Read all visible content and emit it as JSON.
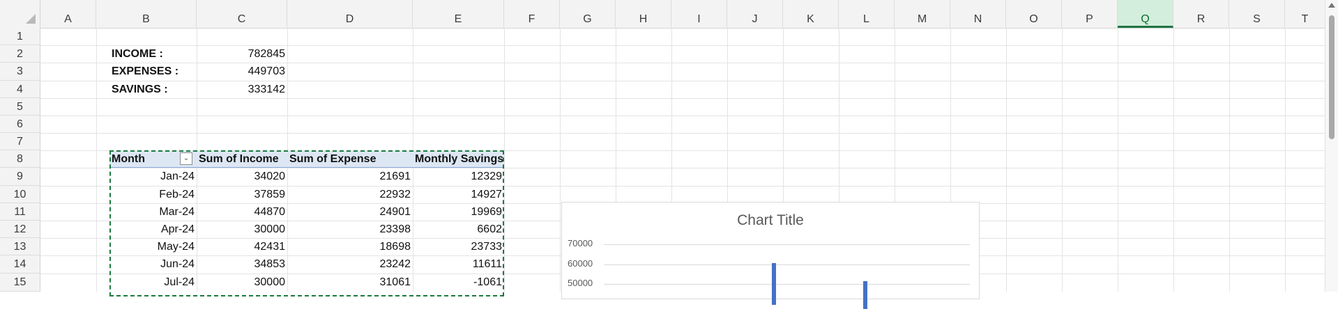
{
  "columns": [
    "A",
    "B",
    "C",
    "D",
    "E",
    "F",
    "G",
    "H",
    "I",
    "J",
    "K",
    "L",
    "M",
    "N",
    "O",
    "P",
    "Q",
    "R",
    "S",
    "T"
  ],
  "selected_column": "Q",
  "rows": [
    "1",
    "2",
    "3",
    "4",
    "5",
    "6",
    "7",
    "8",
    "9",
    "10",
    "11",
    "12",
    "13",
    "14",
    "15"
  ],
  "summary": [
    {
      "label": "INCOME :",
      "value": "782845"
    },
    {
      "label": "EXPENSES :",
      "value": "449703"
    },
    {
      "label": "SAVINGS :",
      "value": "333142"
    }
  ],
  "pivot": {
    "headers": [
      "Month",
      "Sum of Income",
      "Sum of Expense",
      "Monthly Savings"
    ],
    "filter_icon": "dropdown-arrow-icon",
    "rows": [
      [
        "Jan-24",
        "34020",
        "21691",
        "12329"
      ],
      [
        "Feb-24",
        "37859",
        "22932",
        "14927"
      ],
      [
        "Mar-24",
        "44870",
        "24901",
        "19969"
      ],
      [
        "Apr-24",
        "30000",
        "23398",
        "6602"
      ],
      [
        "May-24",
        "42431",
        "18698",
        "23733"
      ],
      [
        "Jun-24",
        "34853",
        "23242",
        "11611"
      ],
      [
        "Jul-24",
        "30000",
        "31061",
        "-1061"
      ]
    ]
  },
  "chart": {
    "title": "Chart Title",
    "y_ticks": [
      "70000",
      "60000",
      "50000"
    ],
    "bar_color": "#4472c4"
  },
  "chart_data": {
    "type": "bar",
    "title": "Chart Title",
    "ylim": [
      40000,
      70000
    ],
    "visible_ticks": [
      70000,
      60000,
      50000
    ],
    "partial_bars": [
      61000,
      52000
    ],
    "note": ""
  },
  "colors": {
    "selected_header_bg": "#d3eedc",
    "selected_header_text": "#0f6d31",
    "pivot_header_bg": "#dde7f3",
    "marquee": "#1b7a3e"
  }
}
